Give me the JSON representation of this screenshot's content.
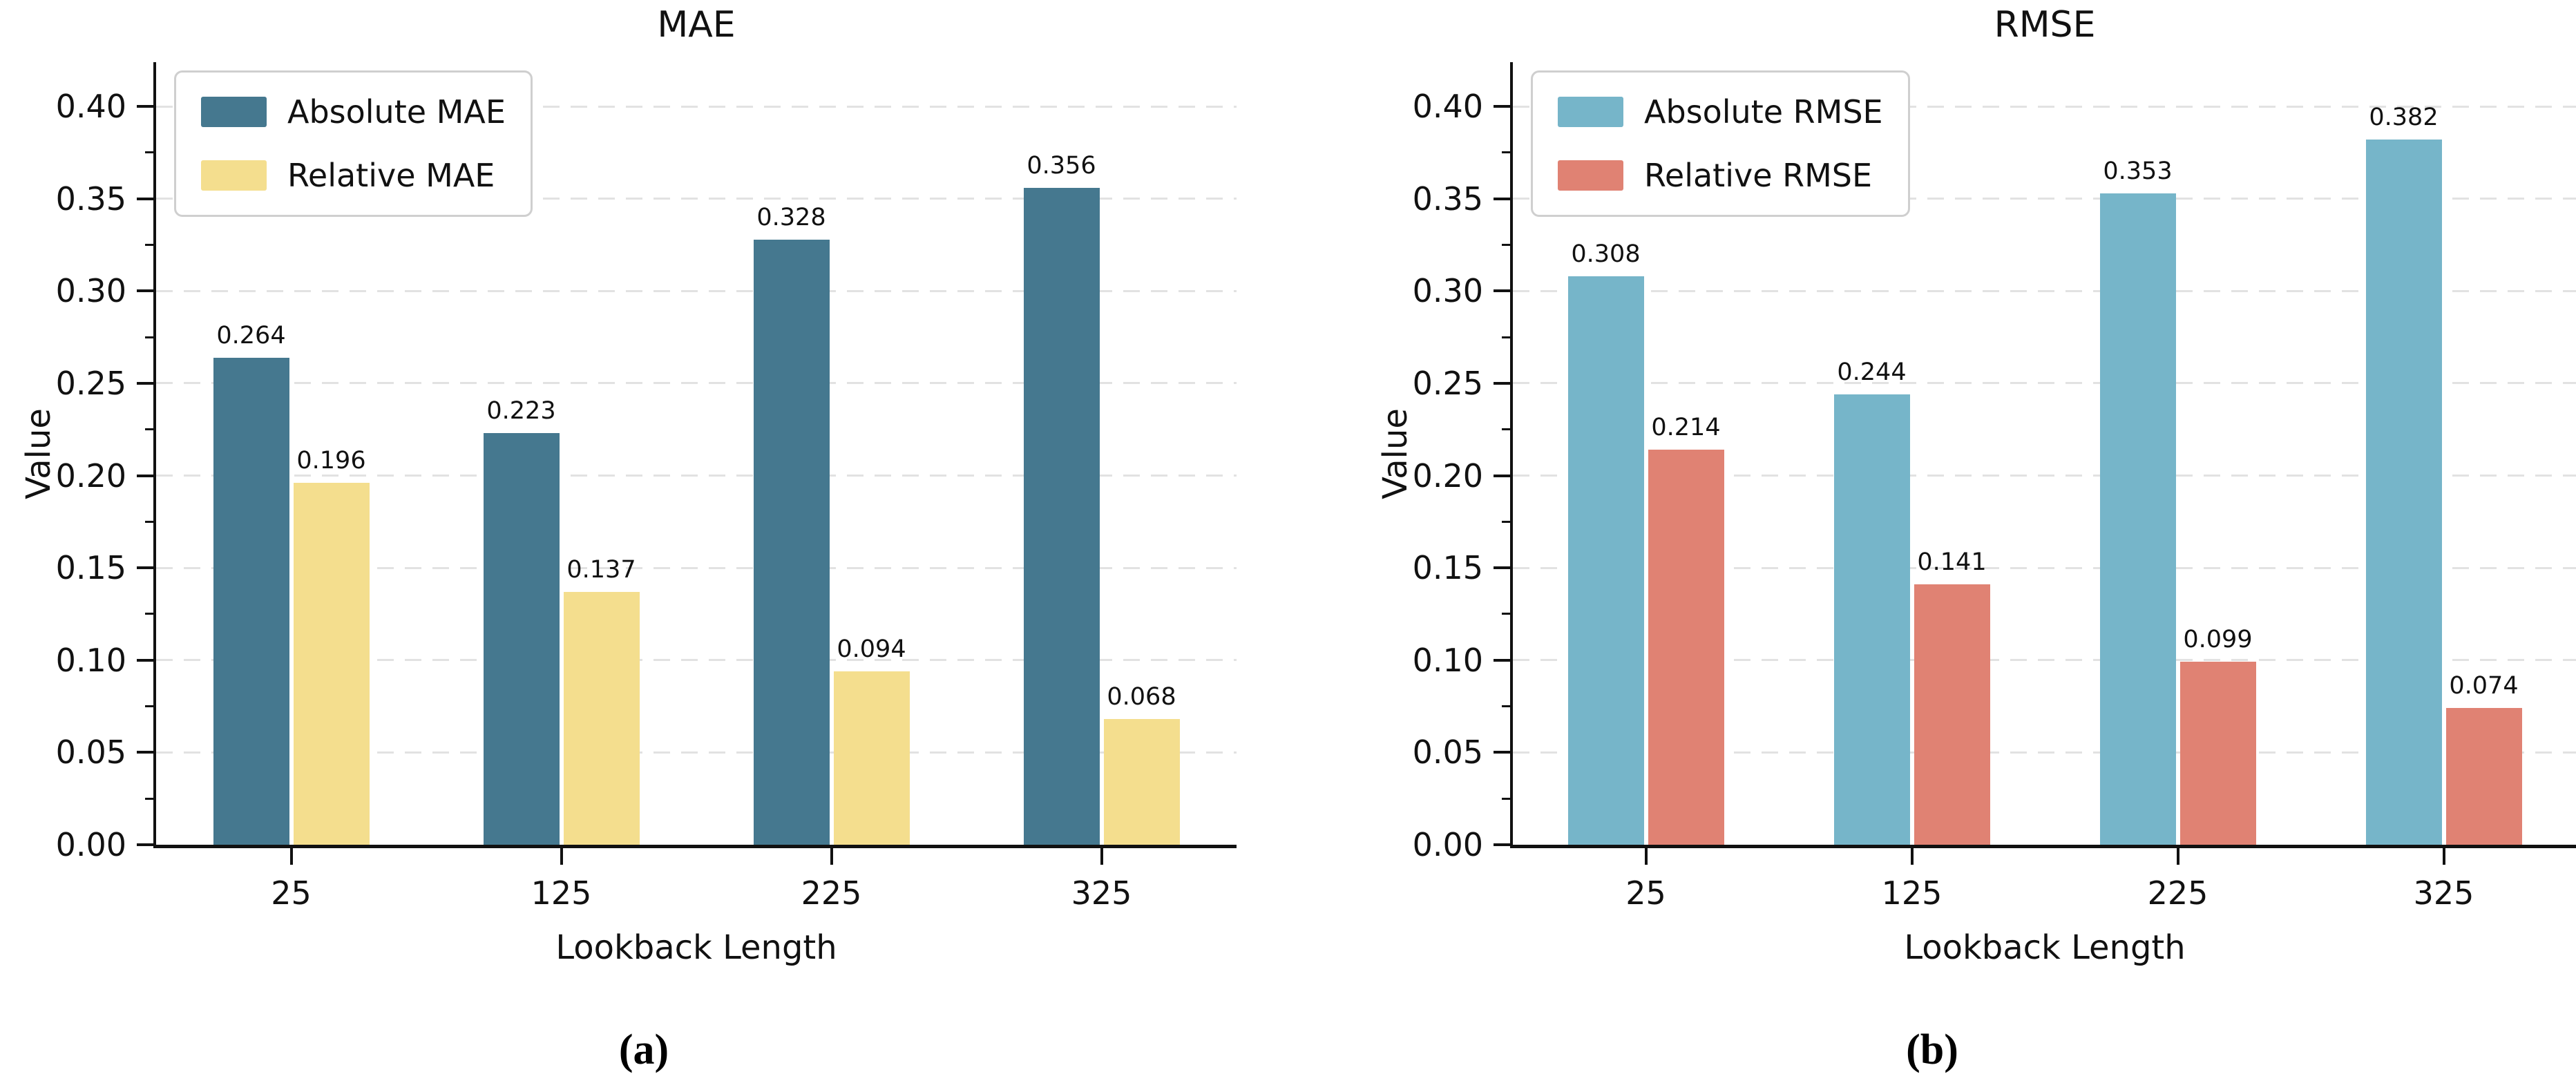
{
  "chart_data": [
    {
      "type": "bar",
      "title": "MAE",
      "xlabel": "Lookback Length",
      "ylabel": "Value",
      "caption": "(a)",
      "categories": [
        "25",
        "125",
        "225",
        "325"
      ],
      "series": [
        {
          "name": "Absolute MAE",
          "color": "#45788F",
          "values": [
            0.264,
            0.223,
            0.328,
            0.356
          ],
          "labels": [
            "0.264",
            "0.223",
            "0.328",
            "0.356"
          ]
        },
        {
          "name": "Relative MAE",
          "color": "#F4DE8E",
          "values": [
            0.196,
            0.137,
            0.094,
            0.068
          ],
          "labels": [
            "0.196",
            "0.137",
            "0.094",
            "0.068"
          ]
        }
      ],
      "ylim": [
        0,
        0.424
      ],
      "yticks": [
        {
          "value": 0.0,
          "label": "0.00"
        },
        {
          "value": 0.05,
          "label": "0.05"
        },
        {
          "value": 0.1,
          "label": "0.10"
        },
        {
          "value": 0.15,
          "label": "0.15"
        },
        {
          "value": 0.2,
          "label": "0.20"
        },
        {
          "value": 0.25,
          "label": "0.25"
        },
        {
          "value": 0.3,
          "label": "0.30"
        },
        {
          "value": 0.35,
          "label": "0.35"
        },
        {
          "value": 0.4,
          "label": "0.40"
        }
      ],
      "minor_tick_step": 0.025,
      "grid": "horizontal-dashed",
      "legend_position": "upper-left",
      "bar_value_labels": true
    },
    {
      "type": "bar",
      "title": "RMSE",
      "xlabel": "Lookback Length",
      "ylabel": "Value",
      "caption": "(b)",
      "categories": [
        "25",
        "125",
        "225",
        "325"
      ],
      "series": [
        {
          "name": "Absolute RMSE",
          "color": "#76B5C9",
          "values": [
            0.308,
            0.244,
            0.353,
            0.382
          ],
          "labels": [
            "0.308",
            "0.244",
            "0.353",
            "0.382"
          ]
        },
        {
          "name": "Relative RMSE",
          "color": "#E08273",
          "values": [
            0.214,
            0.141,
            0.099,
            0.074
          ],
          "labels": [
            "0.214",
            "0.141",
            "0.099",
            "0.074"
          ]
        }
      ],
      "ylim": [
        0,
        0.424
      ],
      "yticks": [
        {
          "value": 0.0,
          "label": "0.00"
        },
        {
          "value": 0.05,
          "label": "0.05"
        },
        {
          "value": 0.1,
          "label": "0.10"
        },
        {
          "value": 0.15,
          "label": "0.15"
        },
        {
          "value": 0.2,
          "label": "0.20"
        },
        {
          "value": 0.25,
          "label": "0.25"
        },
        {
          "value": 0.3,
          "label": "0.30"
        },
        {
          "value": 0.35,
          "label": "0.35"
        },
        {
          "value": 0.4,
          "label": "0.40"
        }
      ],
      "minor_tick_step": 0.025,
      "grid": "horizontal-dashed",
      "legend_position": "upper-left",
      "bar_value_labels": true
    }
  ]
}
